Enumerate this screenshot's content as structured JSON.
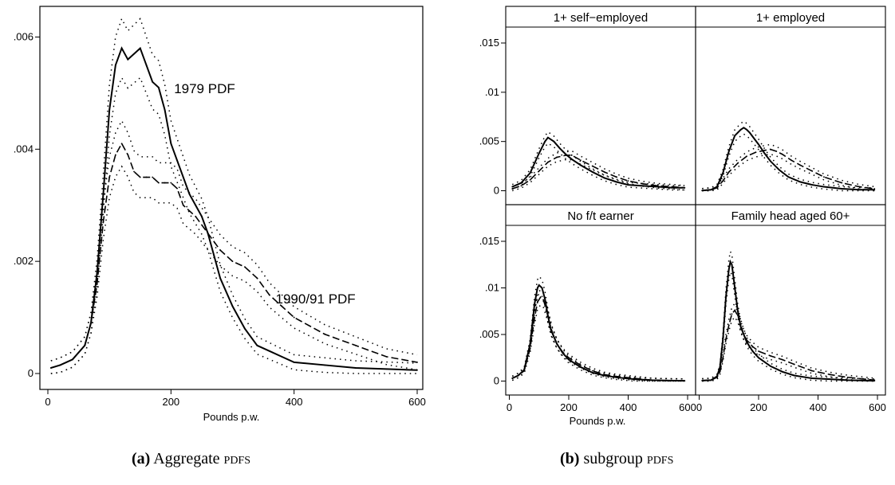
{
  "chart_data": [
    {
      "type": "line",
      "title": "",
      "xlabel": "Pounds p.w.",
      "ylabel": "",
      "xlim": [
        0,
        600
      ],
      "ylim": [
        0,
        0.0066
      ],
      "xticks": [
        0,
        200,
        400,
        600
      ],
      "xtick_labels": [
        "0",
        "200",
        "400",
        "600"
      ],
      "yticks": [
        0,
        0.002,
        0.004,
        0.006
      ],
      "ytick_labels": [
        "0",
        ".002",
        ".004",
        ".006"
      ],
      "grid": false,
      "annotations": [
        {
          "text": "1979 PDF",
          "x": 205,
          "y": 0.005
        },
        {
          "text": "1990/91 PDF",
          "x": 370,
          "y": 0.00125
        }
      ],
      "series": [
        {
          "style": "solid",
          "x": [
            5,
            20,
            40,
            60,
            70,
            80,
            90,
            100,
            110,
            120,
            130,
            140,
            150,
            160,
            170,
            180,
            190,
            200,
            210,
            220,
            230,
            240,
            250,
            260,
            270,
            280,
            300,
            320,
            340,
            360,
            380,
            400,
            450,
            500,
            550,
            600
          ],
          "y": [
            0.0001,
            0.00015,
            0.00025,
            0.0005,
            0.0009,
            0.0018,
            0.0032,
            0.0047,
            0.0055,
            0.0058,
            0.0056,
            0.0057,
            0.0058,
            0.0055,
            0.0052,
            0.0051,
            0.0047,
            0.0041,
            0.0038,
            0.0035,
            0.0032,
            0.003,
            0.0028,
            0.0025,
            0.0021,
            0.0017,
            0.0012,
            0.0008,
            0.0005,
            0.0004,
            0.0003,
            0.0002,
            0.00015,
            0.0001,
            8e-05,
            6e-05
          ]
        },
        {
          "style": "dash",
          "x": [
            5,
            20,
            40,
            60,
            70,
            80,
            90,
            100,
            110,
            120,
            130,
            140,
            150,
            160,
            170,
            180,
            190,
            200,
            210,
            220,
            240,
            260,
            280,
            300,
            320,
            340,
            360,
            380,
            400,
            450,
            500,
            550,
            600
          ],
          "y": [
            0.0001,
            0.00015,
            0.00025,
            0.0005,
            0.0009,
            0.0016,
            0.0027,
            0.0035,
            0.0039,
            0.0041,
            0.0039,
            0.0036,
            0.0035,
            0.0035,
            0.0035,
            0.0034,
            0.0034,
            0.0034,
            0.0033,
            0.003,
            0.0028,
            0.0025,
            0.0022,
            0.002,
            0.0019,
            0.0017,
            0.0014,
            0.0012,
            0.001,
            0.0007,
            0.0005,
            0.0003,
            0.0002
          ]
        }
      ]
    },
    {
      "type": "line",
      "title": "",
      "xlabel": "Pounds p.w.",
      "ylabel": "",
      "xlim": [
        0,
        600
      ],
      "ylim": [
        0,
        0.016
      ],
      "xticks": [
        0,
        200,
        400,
        600
      ],
      "xtick_labels": [
        "0",
        "200",
        "400",
        "600"
      ],
      "yticks": [
        0,
        0.005,
        0.01,
        0.015
      ],
      "ytick_labels": [
        "0",
        ".005",
        ".01",
        ".015"
      ],
      "grid": false,
      "panels": [
        {
          "title": "1+ self−employed",
          "solid": {
            "x": [
              10,
              40,
              70,
              100,
              120,
              130,
              150,
              170,
              190,
              210,
              240,
              280,
              320,
              360,
              400,
              450,
              500,
              550,
              590
            ],
            "y": [
              0.0004,
              0.0008,
              0.0018,
              0.0038,
              0.005,
              0.0054,
              0.005,
              0.0043,
              0.0037,
              0.0032,
              0.0026,
              0.0019,
              0.0013,
              0.0009,
              0.0006,
              0.0005,
              0.0004,
              0.0003,
              0.0003
            ]
          },
          "dash": {
            "x": [
              10,
              40,
              70,
              100,
              130,
              160,
              190,
              210,
              240,
              280,
              320,
              360,
              400,
              450,
              500,
              550,
              590
            ],
            "y": [
              0.0002,
              0.0005,
              0.0011,
              0.002,
              0.0029,
              0.0034,
              0.0036,
              0.0036,
              0.0031,
              0.0025,
              0.0019,
              0.0014,
              0.001,
              0.0007,
              0.0005,
              0.0004,
              0.0003
            ]
          }
        },
        {
          "title": "1+ employed",
          "solid": {
            "x": [
              10,
              40,
              60,
              80,
              100,
              120,
              140,
              150,
              160,
              170,
              180,
              200,
              220,
              240,
              270,
              300,
              340,
              380,
              420,
              480,
              540,
              590
            ],
            "y": [
              2e-05,
              0.0001,
              0.0004,
              0.0018,
              0.004,
              0.0056,
              0.0062,
              0.0064,
              0.0062,
              0.0059,
              0.0055,
              0.0047,
              0.0038,
              0.003,
              0.0021,
              0.0014,
              0.0009,
              0.0006,
              0.0004,
              0.0002,
              0.0001,
              0.0001
            ]
          },
          "dash": {
            "x": [
              10,
              40,
              60,
              80,
              100,
              130,
              160,
              190,
              220,
              240,
              260,
              280,
              310,
              340,
              380,
              420,
              480,
              540,
              590
            ],
            "y": [
              2e-05,
              0.0001,
              0.0003,
              0.001,
              0.0019,
              0.0028,
              0.0035,
              0.0039,
              0.0041,
              0.0042,
              0.004,
              0.0037,
              0.0031,
              0.0026,
              0.002,
              0.0014,
              0.0008,
              0.0004,
              0.0002
            ]
          }
        },
        {
          "title": "No f/t earner",
          "solid": {
            "x": [
              10,
              30,
              50,
              70,
              85,
              95,
              100,
              110,
              120,
              130,
              140,
              160,
              180,
              200,
              240,
              280,
              320,
              360,
              420,
              480,
              540,
              590
            ],
            "y": [
              0.0003,
              0.0006,
              0.0012,
              0.004,
              0.0083,
              0.01,
              0.0103,
              0.01,
              0.0088,
              0.007,
              0.0055,
              0.004,
              0.003,
              0.0023,
              0.0015,
              0.0009,
              0.0006,
              0.0004,
              0.0002,
              0.0001,
              5e-05,
              3e-05
            ]
          },
          "dash": {
            "x": [
              10,
              30,
              50,
              70,
              85,
              95,
              105,
              115,
              125,
              135,
              145,
              160,
              180,
              200,
              240,
              280,
              320,
              360,
              420,
              480,
              540,
              590
            ],
            "y": [
              0.0003,
              0.0006,
              0.0011,
              0.0035,
              0.0068,
              0.0085,
              0.009,
              0.0087,
              0.0076,
              0.0063,
              0.0052,
              0.004,
              0.0031,
              0.0025,
              0.0017,
              0.0011,
              0.0007,
              0.0005,
              0.0003,
              0.0001,
              5e-05,
              3e-05
            ]
          }
        },
        {
          "title": "Family head aged 60+",
          "solid": {
            "x": [
              10,
              40,
              60,
              70,
              80,
              90,
              100,
              105,
              110,
              120,
              130,
              140,
              160,
              180,
              200,
              240,
              280,
              320,
              380,
              440,
              500,
              560,
              590
            ],
            "y": [
              5e-05,
              0.0001,
              0.0005,
              0.0015,
              0.0045,
              0.009,
              0.012,
              0.0128,
              0.0125,
              0.01,
              0.0075,
              0.0058,
              0.0042,
              0.0032,
              0.0025,
              0.0016,
              0.001,
              0.0006,
              0.0003,
              0.0002,
              0.0001,
              5e-05,
              3e-05
            ]
          },
          "dash": {
            "x": [
              10,
              40,
              60,
              70,
              80,
              90,
              100,
              110,
              120,
              130,
              140,
              150,
              160,
              180,
              200,
              240,
              280,
              320,
              380,
              440,
              500,
              560,
              590
            ],
            "y": [
              5e-05,
              0.0001,
              0.0004,
              0.001,
              0.0025,
              0.0045,
              0.006,
              0.0072,
              0.0076,
              0.007,
              0.006,
              0.005,
              0.0044,
              0.0037,
              0.0032,
              0.0027,
              0.0023,
              0.0018,
              0.0011,
              0.0007,
              0.0004,
              0.0002,
              0.0001
            ]
          }
        }
      ]
    }
  ],
  "captions": {
    "a": {
      "tag": "(a)",
      "main": "Aggregate",
      "sc": "pdfs"
    },
    "b": {
      "tag": "(b)",
      "main": "subgroup",
      "sc": "pdfs"
    }
  }
}
